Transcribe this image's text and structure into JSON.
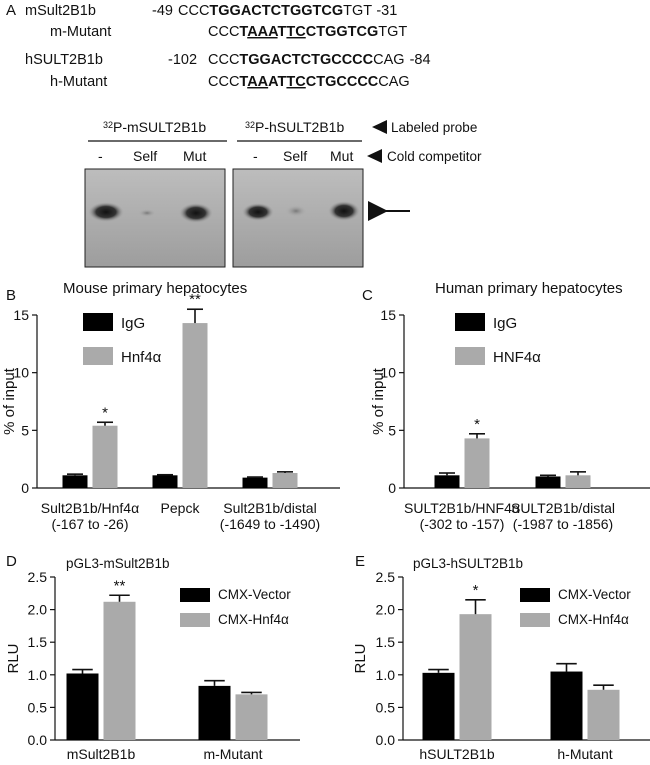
{
  "panel_a": {
    "label": "A",
    "sequences": [
      {
        "name": "mSult2B1b",
        "start": "-49",
        "pre": "CCC",
        "bold": "TGGACTCTGGTCG",
        "post": "TGT",
        "end": "-31"
      },
      {
        "name": "m-Mutant",
        "start": "",
        "pre": "CCC",
        "bold_parts": [
          [
            "T",
            false
          ],
          [
            "AAA",
            true
          ],
          [
            "T",
            false
          ],
          [
            "TC",
            true
          ],
          [
            "CTGGTCG",
            false
          ]
        ],
        "post": "TGT",
        "end": ""
      },
      {
        "name": "hSULT2B1b",
        "start": "-102",
        "pre": "CCC",
        "bold": "TGGACTCTGCCCC",
        "post": "CAG",
        "end": "-84"
      },
      {
        "name": "h-Mutant",
        "start": "",
        "pre": "CCC",
        "bold_parts": [
          [
            "T",
            false
          ],
          [
            "AA",
            true
          ],
          [
            "AT",
            false
          ],
          [
            "TC",
            true
          ],
          [
            "CTGCCCC",
            false
          ]
        ],
        "post": "CAG",
        "end": ""
      }
    ],
    "gel": {
      "probe_left": "P-mSULT2B1b",
      "probe_right": "P-hSULT2B1b",
      "isotope": "32",
      "lanes": [
        "-",
        "Self",
        "Mut"
      ],
      "labeled_probe": "Labeled probe",
      "cold_competitor": "Cold competitor"
    }
  },
  "chart_data": [
    {
      "panel": "B",
      "type": "bar",
      "title": "Mouse primary hepatocytes",
      "ylabel": "% of input",
      "ylim": [
        0,
        15
      ],
      "yticks": [
        "0",
        "5",
        "10",
        "15"
      ],
      "categories": [
        [
          "Sult2B1b/Hnf4α",
          "(-167 to -26)"
        ],
        [
          "Pepck",
          ""
        ],
        [
          "Sult2B1b/distal",
          "(-1649 to -1490)"
        ]
      ],
      "series": [
        {
          "name": "IgG",
          "color": "#000000",
          "values": [
            1.1,
            1.1,
            0.9
          ],
          "errors": [
            0.1,
            0.05,
            0.05
          ]
        },
        {
          "name": "Hnf4α",
          "color": "#aaaaaa",
          "values": [
            5.4,
            14.3,
            1.3
          ],
          "errors": [
            0.3,
            1.2,
            0.1
          ]
        }
      ],
      "annotations": [
        {
          "series": 1,
          "category": 0,
          "text": "*"
        },
        {
          "series": 1,
          "category": 1,
          "text": "**"
        }
      ]
    },
    {
      "panel": "C",
      "type": "bar",
      "title": "Human primary hepatocytes",
      "ylabel": "% of input",
      "ylim": [
        0,
        15
      ],
      "yticks": [
        "0",
        "5",
        "10",
        "15"
      ],
      "categories": [
        [
          "SULT2B1b/HNF4α",
          "(-302 to -157)"
        ],
        [
          "SULT2B1b/distal",
          "(-1987 to -1856)"
        ]
      ],
      "series": [
        {
          "name": "IgG",
          "color": "#000000",
          "values": [
            1.1,
            1.0
          ],
          "errors": [
            0.2,
            0.1
          ]
        },
        {
          "name": "HNF4α",
          "color": "#aaaaaa",
          "values": [
            4.3,
            1.1
          ],
          "errors": [
            0.4,
            0.3
          ]
        }
      ],
      "annotations": [
        {
          "series": 1,
          "category": 0,
          "text": "*"
        }
      ]
    },
    {
      "panel": "D",
      "type": "bar",
      "title": "pGL3-mSult2B1b",
      "ylabel": "RLU",
      "ylim": [
        0,
        2.5
      ],
      "yticks": [
        "0.0",
        "0.5",
        "1.0",
        "1.5",
        "2.0",
        "2.5"
      ],
      "categories": [
        [
          "mSult2B1b",
          ""
        ],
        [
          "m-Mutant",
          ""
        ]
      ],
      "series": [
        {
          "name": "CMX-Vector",
          "color": "#000000",
          "values": [
            1.02,
            0.83
          ],
          "errors": [
            0.06,
            0.08
          ]
        },
        {
          "name": "CMX-Hnf4α",
          "color": "#aaaaaa",
          "values": [
            2.12,
            0.7
          ],
          "errors": [
            0.1,
            0.03
          ]
        }
      ],
      "annotations": [
        {
          "series": 1,
          "category": 0,
          "text": "**"
        }
      ]
    },
    {
      "panel": "E",
      "type": "bar",
      "title": "pGL3-hSULT2B1b",
      "ylabel": "RLU",
      "ylim": [
        0,
        2.5
      ],
      "yticks": [
        "0.0",
        "0.5",
        "1.0",
        "1.5",
        "2.0",
        "2.5"
      ],
      "categories": [
        [
          "hSULT2B1b",
          ""
        ],
        [
          "h-Mutant",
          ""
        ]
      ],
      "series": [
        {
          "name": "CMX-Vector",
          "color": "#000000",
          "values": [
            1.03,
            1.05
          ],
          "errors": [
            0.05,
            0.12
          ]
        },
        {
          "name": "CMX-Hnf4α",
          "color": "#aaaaaa",
          "values": [
            1.93,
            0.77
          ],
          "errors": [
            0.22,
            0.07
          ]
        }
      ],
      "annotations": [
        {
          "series": 1,
          "category": 0,
          "text": "*"
        }
      ]
    }
  ]
}
